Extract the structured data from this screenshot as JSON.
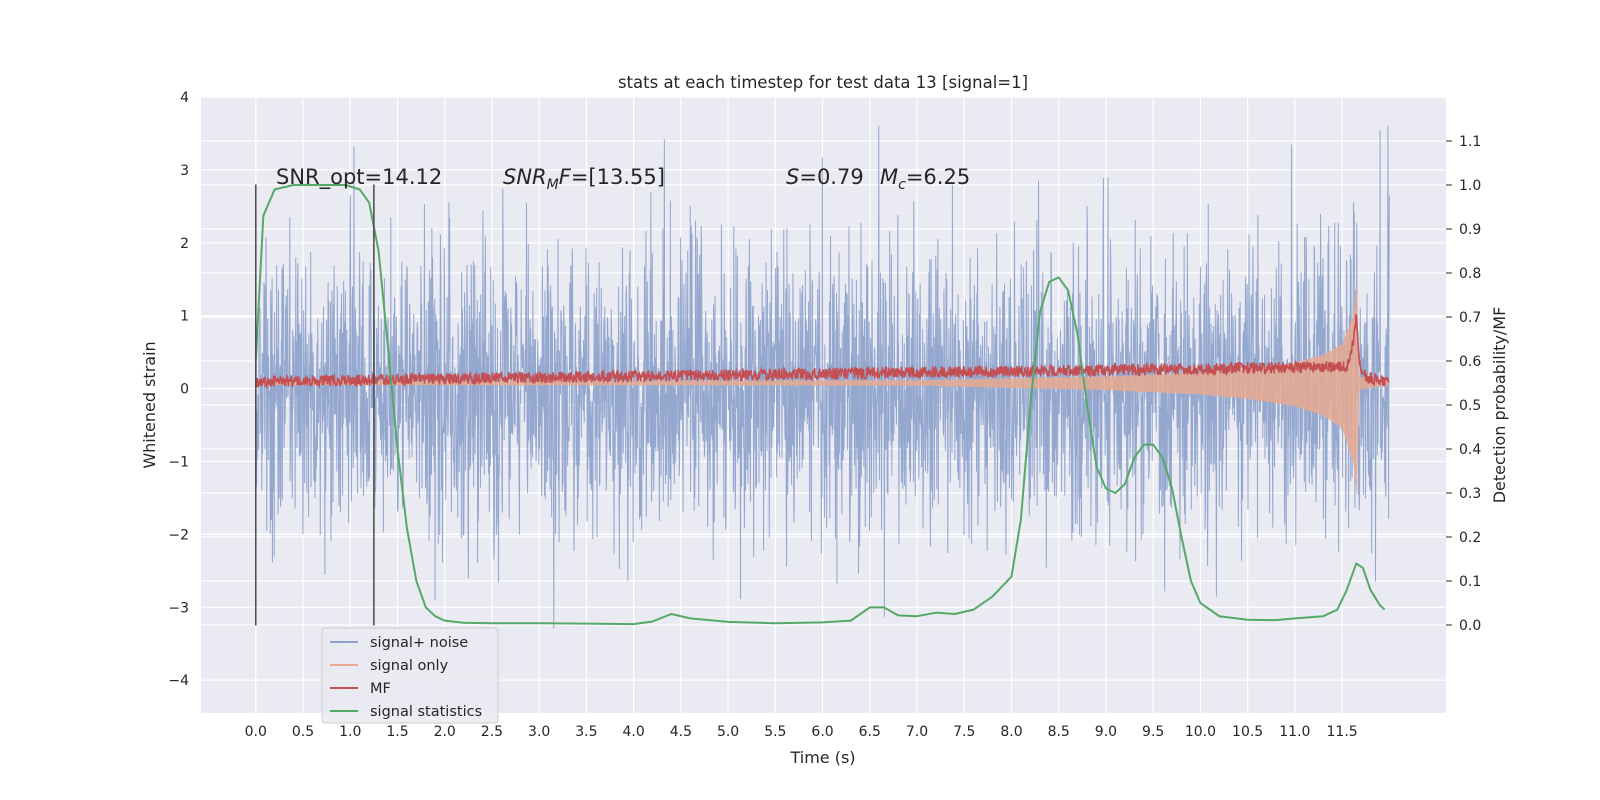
{
  "chart_data": {
    "type": "line",
    "title": "stats at each timestep for test data 13 [signal=1]",
    "xlabel": "Time (s)",
    "ylabel": "Whitened strain",
    "ylabel_right": "Detection probability/MF",
    "xlim": [
      -0.58,
      12.6
    ],
    "ylim": [
      -4.45,
      4.0
    ],
    "ylim_right": [
      -0.2,
      1.2
    ],
    "x_ticks": [
      "0.0",
      "0.5",
      "1.0",
      "1.5",
      "2.0",
      "2.5",
      "3.0",
      "3.5",
      "4.0",
      "4.5",
      "5.0",
      "5.5",
      "6.0",
      "6.5",
      "7.0",
      "7.5",
      "8.0",
      "8.5",
      "9.0",
      "9.5",
      "10.0",
      "10.5",
      "11.0",
      "11.5"
    ],
    "y_ticks": [
      "4",
      "3",
      "2",
      "1",
      "0",
      "−1",
      "−2",
      "−3",
      "−4"
    ],
    "y_ticks_right": [
      "1.1",
      "1.0",
      "0.9",
      "0.8",
      "0.7",
      "0.6",
      "0.5",
      "0.4",
      "0.3",
      "0.2",
      "0.1",
      "0.0"
    ],
    "grid": true,
    "legend_position": "lower-left",
    "annotations": {
      "snr_opt": "SNR_opt=14.12",
      "snr_mf": "=[13.55]",
      "s_value": "=0.79",
      "mc_value": "=6.25"
    },
    "vertical_markers": [
      0.0,
      1.25
    ],
    "series": [
      {
        "name": "signal+ noise",
        "color": "#8fa3cc",
        "axis": "left",
        "kind": "noise",
        "t_range": [
          0.0,
          12.0
        ],
        "typical_amplitude": 1.0,
        "max_abs": 3.6
      },
      {
        "name": "signal only",
        "color": "#e8a98f",
        "axis": "left",
        "kind": "chirp",
        "x": [
          0.0,
          7.0,
          8.0,
          9.0,
          10.0,
          10.5,
          11.0,
          11.3,
          11.5,
          11.62,
          11.66,
          11.67,
          12.0
        ],
        "envelope": [
          0.03,
          0.04,
          0.07,
          0.1,
          0.16,
          0.22,
          0.32,
          0.45,
          0.62,
          1.1,
          1.6,
          0.1,
          0.03
        ]
      },
      {
        "name": "MF",
        "color": "#c44e52",
        "axis": "left",
        "kind": "mf",
        "baseline": 0.1,
        "band": 0.08,
        "x": [
          0.0,
          11.55,
          11.62,
          11.65,
          11.68,
          11.75,
          12.0
        ],
        "peak": [
          0.1,
          0.3,
          0.65,
          1.0,
          0.35,
          0.15,
          0.1
        ]
      },
      {
        "name": "signal statistics",
        "color": "#55a868",
        "axis": "right",
        "kind": "line",
        "x": [
          0.0,
          0.08,
          0.2,
          0.4,
          0.7,
          0.95,
          1.1,
          1.2,
          1.3,
          1.4,
          1.5,
          1.6,
          1.7,
          1.8,
          1.9,
          2.0,
          2.2,
          2.5,
          3.0,
          3.5,
          4.0,
          4.2,
          4.4,
          4.6,
          5.0,
          5.5,
          6.0,
          6.3,
          6.5,
          6.65,
          6.8,
          7.0,
          7.2,
          7.4,
          7.6,
          7.8,
          8.0,
          8.1,
          8.2,
          8.3,
          8.4,
          8.5,
          8.6,
          8.7,
          8.8,
          8.9,
          9.0,
          9.1,
          9.2,
          9.3,
          9.4,
          9.5,
          9.6,
          9.7,
          9.8,
          9.9,
          10.0,
          10.2,
          10.5,
          10.8,
          11.0,
          11.3,
          11.45,
          11.55,
          11.65,
          11.72,
          11.8,
          11.9,
          11.95
        ],
        "y": [
          0.6,
          0.93,
          0.99,
          1.0,
          1.0,
          1.0,
          0.99,
          0.96,
          0.85,
          0.63,
          0.4,
          0.22,
          0.1,
          0.04,
          0.02,
          0.01,
          0.005,
          0.004,
          0.004,
          0.003,
          0.002,
          0.008,
          0.025,
          0.015,
          0.007,
          0.004,
          0.006,
          0.01,
          0.04,
          0.04,
          0.022,
          0.02,
          0.028,
          0.025,
          0.035,
          0.065,
          0.11,
          0.24,
          0.5,
          0.71,
          0.78,
          0.79,
          0.76,
          0.66,
          0.5,
          0.36,
          0.31,
          0.3,
          0.32,
          0.38,
          0.41,
          0.41,
          0.38,
          0.31,
          0.2,
          0.1,
          0.05,
          0.02,
          0.012,
          0.011,
          0.015,
          0.02,
          0.035,
          0.08,
          0.14,
          0.13,
          0.08,
          0.045,
          0.035
        ]
      }
    ]
  }
}
